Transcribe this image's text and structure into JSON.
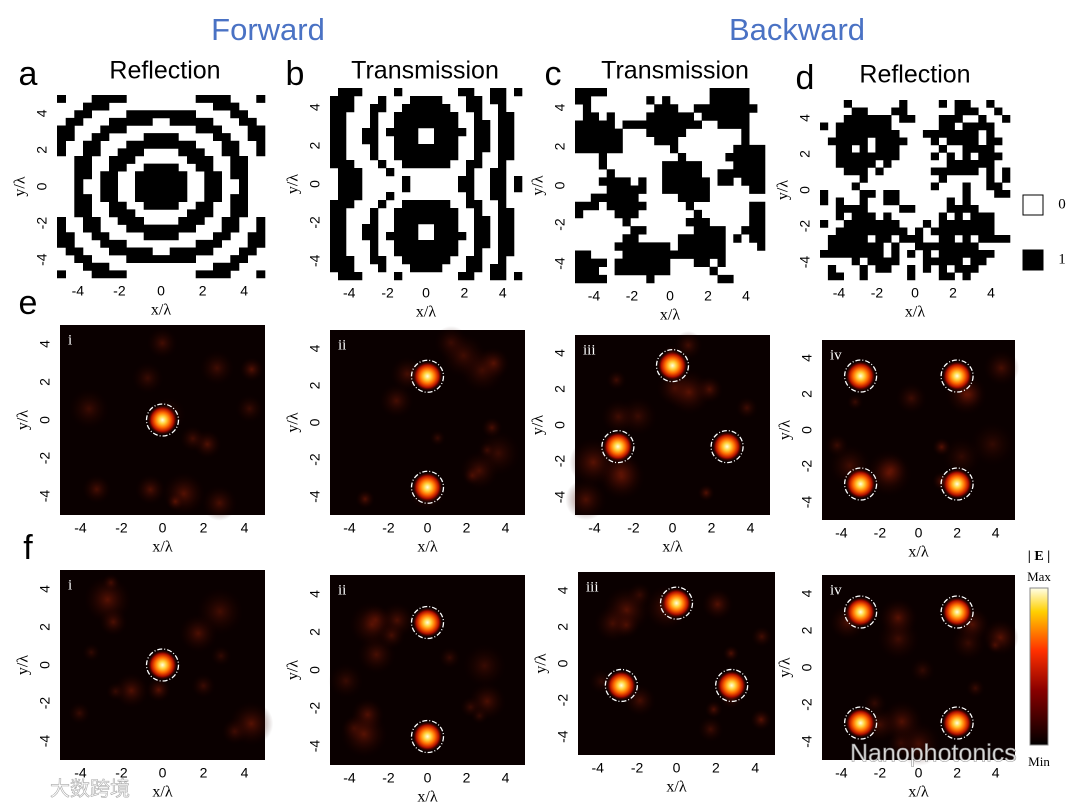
{
  "headers": [
    "Forward",
    "Backward"
  ],
  "top_panels": [
    {
      "letter": "a",
      "title": "Reflection"
    },
    {
      "letter": "b",
      "title": "Transmission"
    },
    {
      "letter": "c",
      "title": "Transmission"
    },
    {
      "letter": "d",
      "title": "Reflection"
    }
  ],
  "field_rows": [
    {
      "letter": "e",
      "panels": [
        "i",
        "ii",
        "iii",
        "iv"
      ]
    },
    {
      "letter": "f",
      "panels": [
        "i",
        "ii",
        "iii",
        "iv"
      ]
    }
  ],
  "axis": {
    "xlabel": "x/λ",
    "ylabel": "y/λ",
    "ticks": [
      -4,
      -2,
      0,
      2,
      4
    ]
  },
  "legend": [
    "0",
    "1"
  ],
  "colorbar": {
    "title": "| E |",
    "max": "Max",
    "min": "Min"
  },
  "watermarks": [
    "Nanophotonics",
    "大数跨境"
  ]
}
